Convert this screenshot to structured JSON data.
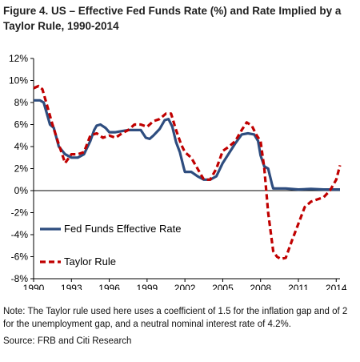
{
  "title": "Figure 4. US – Effective Fed Funds Rate (%) and Rate Implied by a Taylor Rule, 1990-2014",
  "note": "Note: The Taylor rule used here uses a coefficient of 1.5 for the inflation gap and of 2 for the unemployment gap, and a neutral nominal interest rate of 4.2%.",
  "source": "Source: FRB and Citi Research",
  "chart_data": {
    "type": "line",
    "title": "Figure 4. US – Effective Fed Funds Rate (%) and Rate Implied by a Taylor Rule, 1990-2014",
    "xlabel": "",
    "ylabel": "",
    "xlim": [
      1990,
      2014.3
    ],
    "ylim": [
      -8,
      12
    ],
    "x_ticks": [
      1990,
      1993,
      1996,
      1999,
      2002,
      2005,
      2008,
      2011,
      2014
    ],
    "y_ticks": [
      -8,
      -6,
      -4,
      -2,
      0,
      2,
      4,
      6,
      8,
      10,
      12
    ],
    "y_tick_labels": [
      "-8%",
      "-6%",
      "-4%",
      "-2%",
      "0%",
      "2%",
      "4%",
      "6%",
      "8%",
      "10%",
      "12%"
    ],
    "grid": false,
    "legend_position": "lower-left",
    "series": [
      {
        "name": "Fed Funds Effective Rate",
        "color": "#2e4d7f",
        "style": "solid",
        "x": [
          1990,
          1990.5,
          1990.8,
          1991,
          1991.3,
          1991.6,
          1992,
          1992.5,
          1993,
          1993.5,
          1994,
          1994.5,
          1994.8,
          1995,
          1995.3,
          1995.7,
          1996,
          1996.5,
          1997,
          1997.5,
          1998,
          1998.5,
          1998.9,
          1999.2,
          1999.5,
          2000,
          2000.4,
          2000.7,
          2001,
          2001.3,
          2001.6,
          2001.9,
          2002,
          2002.5,
          2003,
          2003.5,
          2004,
          2004.5,
          2005,
          2005.5,
          2006,
          2006.5,
          2007,
          2007.5,
          2007.8,
          2008,
          2008.3,
          2008.6,
          2008.9,
          2009,
          2010,
          2011,
          2012,
          2013,
          2014,
          2014.3
        ],
        "values": [
          8.2,
          8.2,
          8.0,
          7.2,
          6.0,
          5.7,
          4.0,
          3.3,
          3.0,
          3.0,
          3.3,
          4.5,
          5.5,
          5.9,
          6.0,
          5.7,
          5.3,
          5.3,
          5.4,
          5.5,
          5.5,
          5.5,
          4.8,
          4.7,
          5.0,
          5.6,
          6.4,
          6.5,
          5.8,
          4.4,
          3.5,
          2.1,
          1.7,
          1.7,
          1.3,
          1.0,
          1.0,
          1.3,
          2.5,
          3.4,
          4.3,
          5.1,
          5.2,
          5.1,
          4.5,
          3.2,
          2.2,
          2.0,
          0.6,
          0.2,
          0.2,
          0.1,
          0.15,
          0.1,
          0.1,
          0.1
        ]
      },
      {
        "name": "Taylor Rule",
        "color": "#c00000",
        "style": "dashed",
        "x": [
          1990,
          1990.4,
          1990.7,
          1991,
          1991.5,
          1992,
          1992.5,
          1993,
          1993.5,
          1994,
          1994.5,
          1995,
          1995.5,
          1996,
          1996.5,
          1997,
          1997.5,
          1998,
          1998.5,
          1999,
          1999.5,
          2000,
          2000.5,
          2000.9,
          2001.3,
          2001.7,
          2002,
          2002.5,
          2003,
          2003.5,
          2004,
          2004.5,
          2005,
          2005.5,
          2006,
          2006.5,
          2006.9,
          2007.3,
          2007.7,
          2008,
          2008.3,
          2008.6,
          2009,
          2009.3,
          2009.6,
          2010,
          2010.5,
          2011,
          2011.5,
          2012,
          2012.5,
          2013,
          2013.5,
          2014,
          2014.3
        ],
        "values": [
          9.3,
          9.5,
          9.2,
          8.0,
          6.0,
          4.2,
          2.5,
          3.3,
          3.3,
          3.5,
          5.0,
          5.2,
          4.8,
          5.0,
          4.8,
          5.2,
          5.5,
          6.0,
          6.0,
          5.8,
          6.3,
          6.5,
          7.0,
          7.0,
          5.5,
          4.2,
          3.5,
          3.0,
          2.0,
          1.0,
          1.0,
          2.0,
          3.6,
          4.0,
          4.5,
          5.5,
          6.2,
          5.9,
          5.0,
          4.5,
          2.0,
          -2.0,
          -5.5,
          -6.0,
          -6.2,
          -6.1,
          -4.5,
          -3.0,
          -1.5,
          -1.0,
          -0.8,
          -0.6,
          0.0,
          1.0,
          2.3
        ]
      }
    ]
  }
}
